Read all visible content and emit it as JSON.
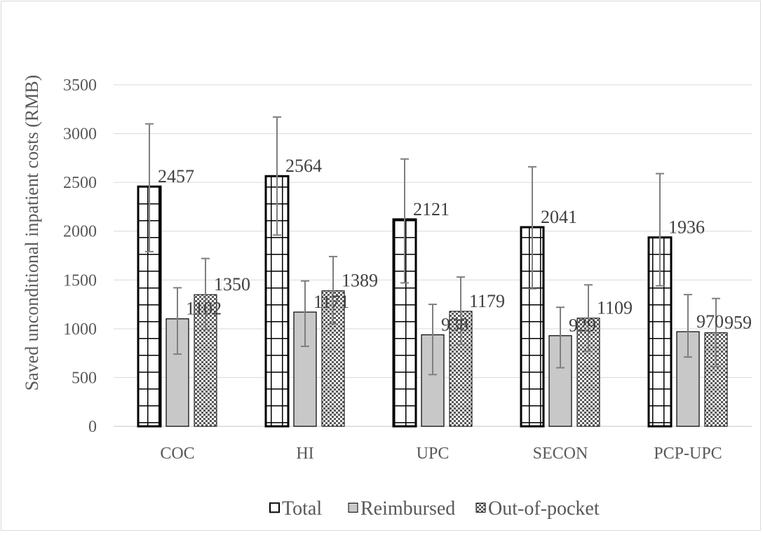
{
  "chart_data": {
    "type": "bar",
    "title": "",
    "xlabel": "",
    "ylabel": "Saved unconditional inpatient costs (RMB)",
    "ylim": [
      0,
      3500
    ],
    "yticks": [
      0,
      500,
      1000,
      1500,
      2000,
      2500,
      3000,
      3500
    ],
    "grid": true,
    "legend_position": "bottom",
    "categories": [
      "COC",
      "HI",
      "UPC",
      "SECON",
      "PCP-UPC"
    ],
    "series": [
      {
        "name": "Total",
        "pattern": "grid",
        "values": [
          2457,
          2564,
          2121,
          2041,
          1936
        ],
        "error_low": [
          1790,
          1960,
          1470,
          1410,
          1440
        ],
        "error_high": [
          3100,
          3170,
          2740,
          2660,
          2590
        ]
      },
      {
        "name": "Reimbursed",
        "pattern": "solid-gray",
        "values": [
          1102,
          1171,
          938,
          929,
          970
        ],
        "error_low": [
          740,
          820,
          530,
          600,
          710
        ],
        "error_high": [
          1420,
          1490,
          1250,
          1220,
          1350
        ]
      },
      {
        "name": "Out-of-pocket",
        "pattern": "dots",
        "values": [
          1350,
          1389,
          1179,
          1109,
          959
        ],
        "error_low": [
          990,
          1050,
          840,
          770,
          610
        ],
        "error_high": [
          1720,
          1740,
          1530,
          1450,
          1310
        ]
      }
    ],
    "colors": {
      "text": "#595959",
      "label": "#404040",
      "grid": "#d9d9d9",
      "bar_outline": "#000000",
      "reimbursed_fill": "#c8c8c8",
      "dots_fill": "#595959",
      "error_bar": "#7f7f7f"
    }
  }
}
